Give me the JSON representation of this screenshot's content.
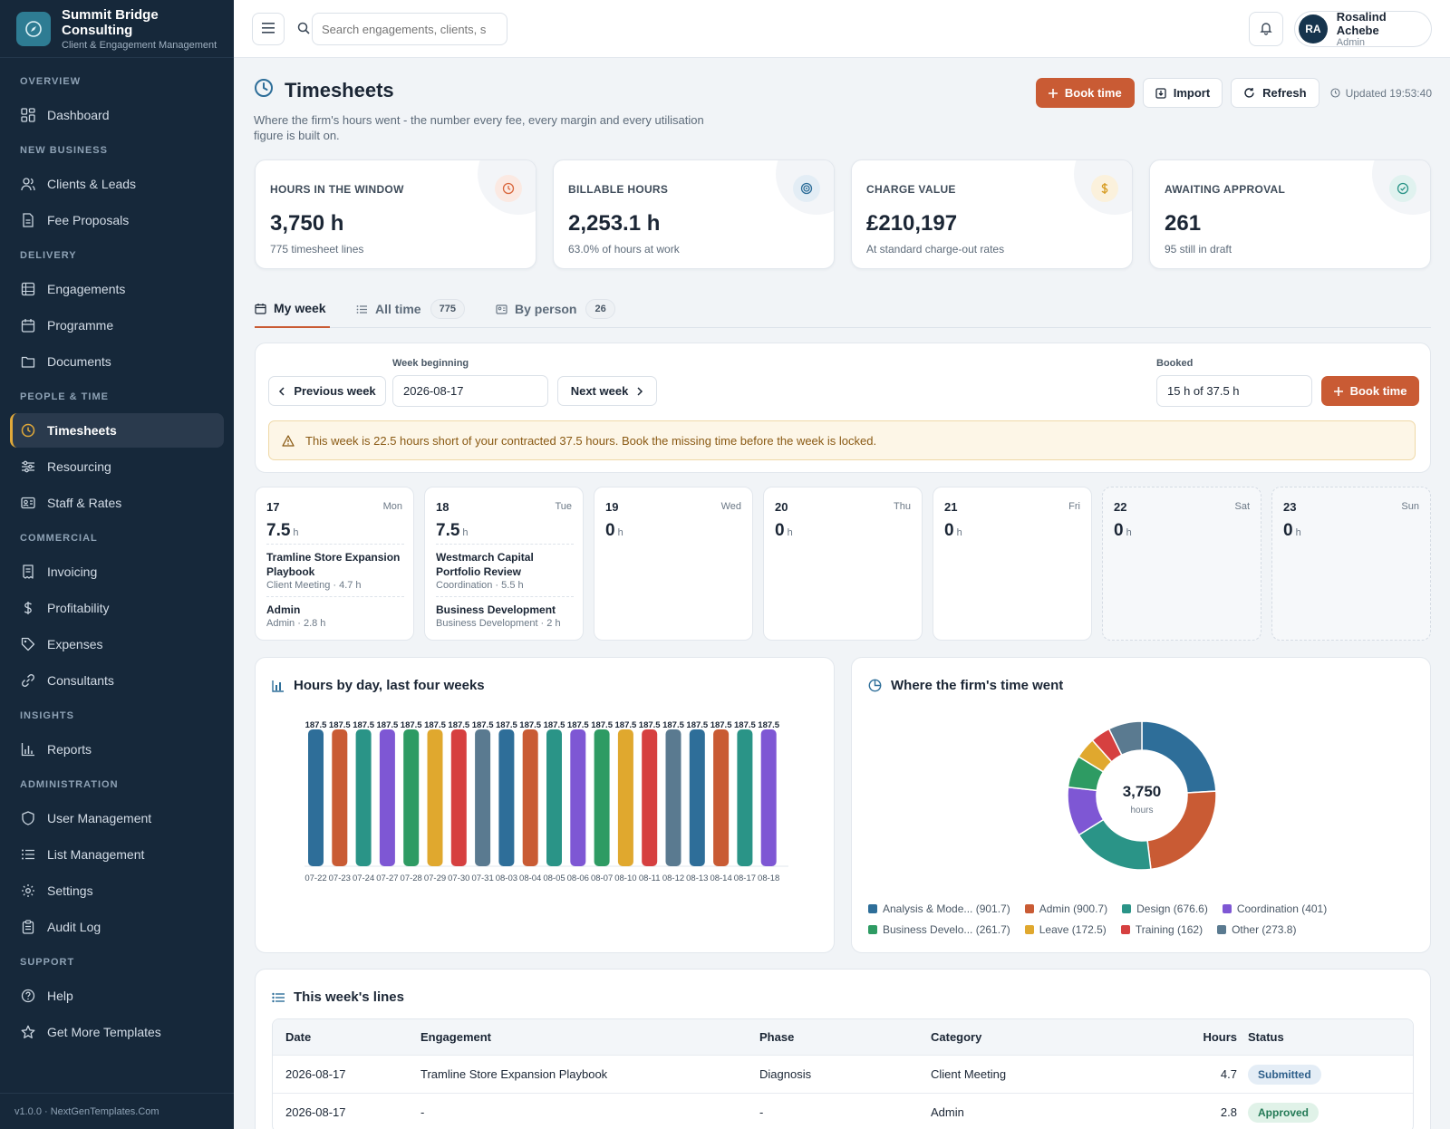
{
  "brand": {
    "name_line1": "Summit Bridge",
    "name_line2": "Consulting",
    "subtitle": "Client & Engagement Management"
  },
  "sidebar": {
    "sections": [
      {
        "title": "OVERVIEW",
        "items": [
          {
            "label": "Dashboard",
            "icon": "dashboard-icon"
          }
        ]
      },
      {
        "title": "NEW BUSINESS",
        "items": [
          {
            "label": "Clients & Leads",
            "icon": "users-icon"
          },
          {
            "label": "Fee Proposals",
            "icon": "document-icon"
          }
        ]
      },
      {
        "title": "DELIVERY",
        "items": [
          {
            "label": "Engagements",
            "icon": "grid-icon"
          },
          {
            "label": "Programme",
            "icon": "calendar-icon"
          },
          {
            "label": "Documents",
            "icon": "folder-icon"
          }
        ]
      },
      {
        "title": "PEOPLE & TIME",
        "items": [
          {
            "label": "Timesheets",
            "icon": "clock-icon",
            "active": true
          },
          {
            "label": "Resourcing",
            "icon": "sliders-icon"
          },
          {
            "label": "Staff & Rates",
            "icon": "id-card-icon"
          }
        ]
      },
      {
        "title": "COMMERCIAL",
        "items": [
          {
            "label": "Invoicing",
            "icon": "invoice-icon"
          },
          {
            "label": "Profitability",
            "icon": "dollar-icon"
          },
          {
            "label": "Expenses",
            "icon": "tag-icon"
          },
          {
            "label": "Consultants",
            "icon": "link-icon"
          }
        ]
      },
      {
        "title": "INSIGHTS",
        "items": [
          {
            "label": "Reports",
            "icon": "bar-chart-icon"
          }
        ]
      },
      {
        "title": "ADMINISTRATION",
        "items": [
          {
            "label": "User Management",
            "icon": "shield-icon"
          },
          {
            "label": "List Management",
            "icon": "list-icon"
          },
          {
            "label": "Settings",
            "icon": "gear-icon"
          },
          {
            "label": "Audit Log",
            "icon": "clipboard-icon"
          }
        ]
      },
      {
        "title": "SUPPORT",
        "items": [
          {
            "label": "Help",
            "icon": "help-icon"
          },
          {
            "label": "Get More Templates",
            "icon": "star-icon"
          }
        ]
      }
    ],
    "footer": "v1.0.0 · NextGenTemplates.Com"
  },
  "topbar": {
    "search_placeholder": "Search engagements, clients, s",
    "user": {
      "initials": "RA",
      "name": "Rosalind Achebe",
      "role": "Admin"
    }
  },
  "page": {
    "title": "Timesheets",
    "description": "Where the firm's hours went - the number every fee, every margin and every utilisation figure is built on.",
    "actions": {
      "book_time": "Book time",
      "import": "Import",
      "refresh": "Refresh"
    },
    "updated": "Updated 19:53:40"
  },
  "kpis": [
    {
      "label": "HOURS IN THE WINDOW",
      "value": "3,750 h",
      "sub": "775 timesheet lines",
      "icon": "clock-icon",
      "color": "#d9673d",
      "bg": "#fbe9e2"
    },
    {
      "label": "BILLABLE HOURS",
      "value": "2,253.1 h",
      "sub": "63.0% of hours at work",
      "icon": "target-icon",
      "color": "#2e6e99",
      "bg": "#e3edf5"
    },
    {
      "label": "CHARGE VALUE",
      "value": "£210,197",
      "sub": "At standard charge-out rates",
      "icon": "dollar-icon",
      "color": "#d69a1e",
      "bg": "#fbf1dc"
    },
    {
      "label": "AWAITING APPROVAL",
      "value": "261",
      "sub": "95 still in draft",
      "icon": "check-circle-icon",
      "color": "#2a9487",
      "bg": "#e0f2ef"
    }
  ],
  "tabs": [
    {
      "label": "My week",
      "icon": "calendar-icon",
      "count": ""
    },
    {
      "label": "All time",
      "icon": "list-icon",
      "count": "775"
    },
    {
      "label": "By person",
      "icon": "id-card-icon",
      "count": "26"
    }
  ],
  "week": {
    "prev_label": "Previous week",
    "next_label": "Next week",
    "week_beginning_label": "Week beginning",
    "week_beginning_value": "2026-08-17",
    "booked_label": "Booked",
    "booked_value": "15 h of 37.5 h",
    "book_time": "Book time",
    "warning": "This week is 22.5 hours short of your contracted 37.5 hours. Book the missing time before the week is locked."
  },
  "days": [
    {
      "num": "17",
      "name": "Mon",
      "hours": "7.5",
      "unit": "h",
      "weekend": false,
      "entries": [
        {
          "title": "Tramline Store Expansion Playbook",
          "sub": "Client Meeting · 4.7 h"
        },
        {
          "title": "Admin",
          "sub": "Admin · 2.8 h"
        }
      ]
    },
    {
      "num": "18",
      "name": "Tue",
      "hours": "7.5",
      "unit": "h",
      "weekend": false,
      "entries": [
        {
          "title": "Westmarch Capital Portfolio Review",
          "sub": "Coordination · 5.5 h"
        },
        {
          "title": "Business Development",
          "sub": "Business Development · 2 h"
        }
      ]
    },
    {
      "num": "19",
      "name": "Wed",
      "hours": "0",
      "unit": "h",
      "weekend": false,
      "entries": []
    },
    {
      "num": "20",
      "name": "Thu",
      "hours": "0",
      "unit": "h",
      "weekend": false,
      "entries": []
    },
    {
      "num": "21",
      "name": "Fri",
      "hours": "0",
      "unit": "h",
      "weekend": false,
      "entries": []
    },
    {
      "num": "22",
      "name": "Sat",
      "hours": "0",
      "unit": "h",
      "weekend": true,
      "entries": []
    },
    {
      "num": "23",
      "name": "Sun",
      "hours": "0",
      "unit": "h",
      "weekend": true,
      "entries": []
    }
  ],
  "bar_card": {
    "title": "Hours by day, last four weeks"
  },
  "donut_card": {
    "title": "Where the firm's time went",
    "center_value": "3,750",
    "center_label": "hours"
  },
  "chart_data": [
    {
      "type": "bar",
      "title": "Hours by day, last four weeks",
      "categories": [
        "07-22",
        "07-23",
        "07-24",
        "07-27",
        "07-28",
        "07-29",
        "07-30",
        "07-31",
        "08-03",
        "08-04",
        "08-05",
        "08-06",
        "08-07",
        "08-10",
        "08-11",
        "08-12",
        "08-13",
        "08-14",
        "08-17",
        "08-18"
      ],
      "values": [
        187.5,
        187.5,
        187.5,
        187.5,
        187.5,
        187.5,
        187.5,
        187.5,
        187.5,
        187.5,
        187.5,
        187.5,
        187.5,
        187.5,
        187.5,
        187.5,
        187.5,
        187.5,
        187.5,
        187.5
      ],
      "colors": [
        "#2e6e99",
        "#c95b34",
        "#2a9487",
        "#7e57d4",
        "#2e9b63",
        "#e0a82e",
        "#d64040",
        "#5a7a90"
      ],
      "ylim": [
        0,
        187.5
      ],
      "grid": false
    },
    {
      "type": "pie",
      "title": "Where the firm's time went",
      "donut": true,
      "slices": [
        {
          "label": "Analysis & Mode...",
          "value": 901.7,
          "color": "#2e6e99"
        },
        {
          "label": "Admin",
          "value": 900.7,
          "color": "#c95b34"
        },
        {
          "label": "Design",
          "value": 676.6,
          "color": "#2a9487"
        },
        {
          "label": "Coordination",
          "value": 401,
          "color": "#7e57d4"
        },
        {
          "label": "Business Develo...",
          "value": 261.7,
          "color": "#2e9b63"
        },
        {
          "label": "Leave",
          "value": 172.5,
          "color": "#e0a82e"
        },
        {
          "label": "Training",
          "value": 162,
          "color": "#d64040"
        },
        {
          "label": "Other",
          "value": 273.8,
          "color": "#5a7a90"
        }
      ],
      "legend": "bottom"
    }
  ],
  "lines": {
    "title": "This week's lines",
    "headers": [
      "Date",
      "Engagement",
      "Phase",
      "Category",
      "Hours",
      "Status"
    ],
    "rows": [
      {
        "date": "2026-08-17",
        "engagement": "Tramline Store Expansion Playbook",
        "phase": "Diagnosis",
        "category": "Client Meeting",
        "hours": "4.7",
        "status": "Submitted",
        "status_color": "#2e5f8a",
        "status_bg": "#e4edf6"
      },
      {
        "date": "2026-08-17",
        "engagement": "-",
        "phase": "-",
        "category": "Admin",
        "hours": "2.8",
        "status": "Approved",
        "status_color": "#237a56",
        "status_bg": "#e0f2e8"
      }
    ]
  }
}
